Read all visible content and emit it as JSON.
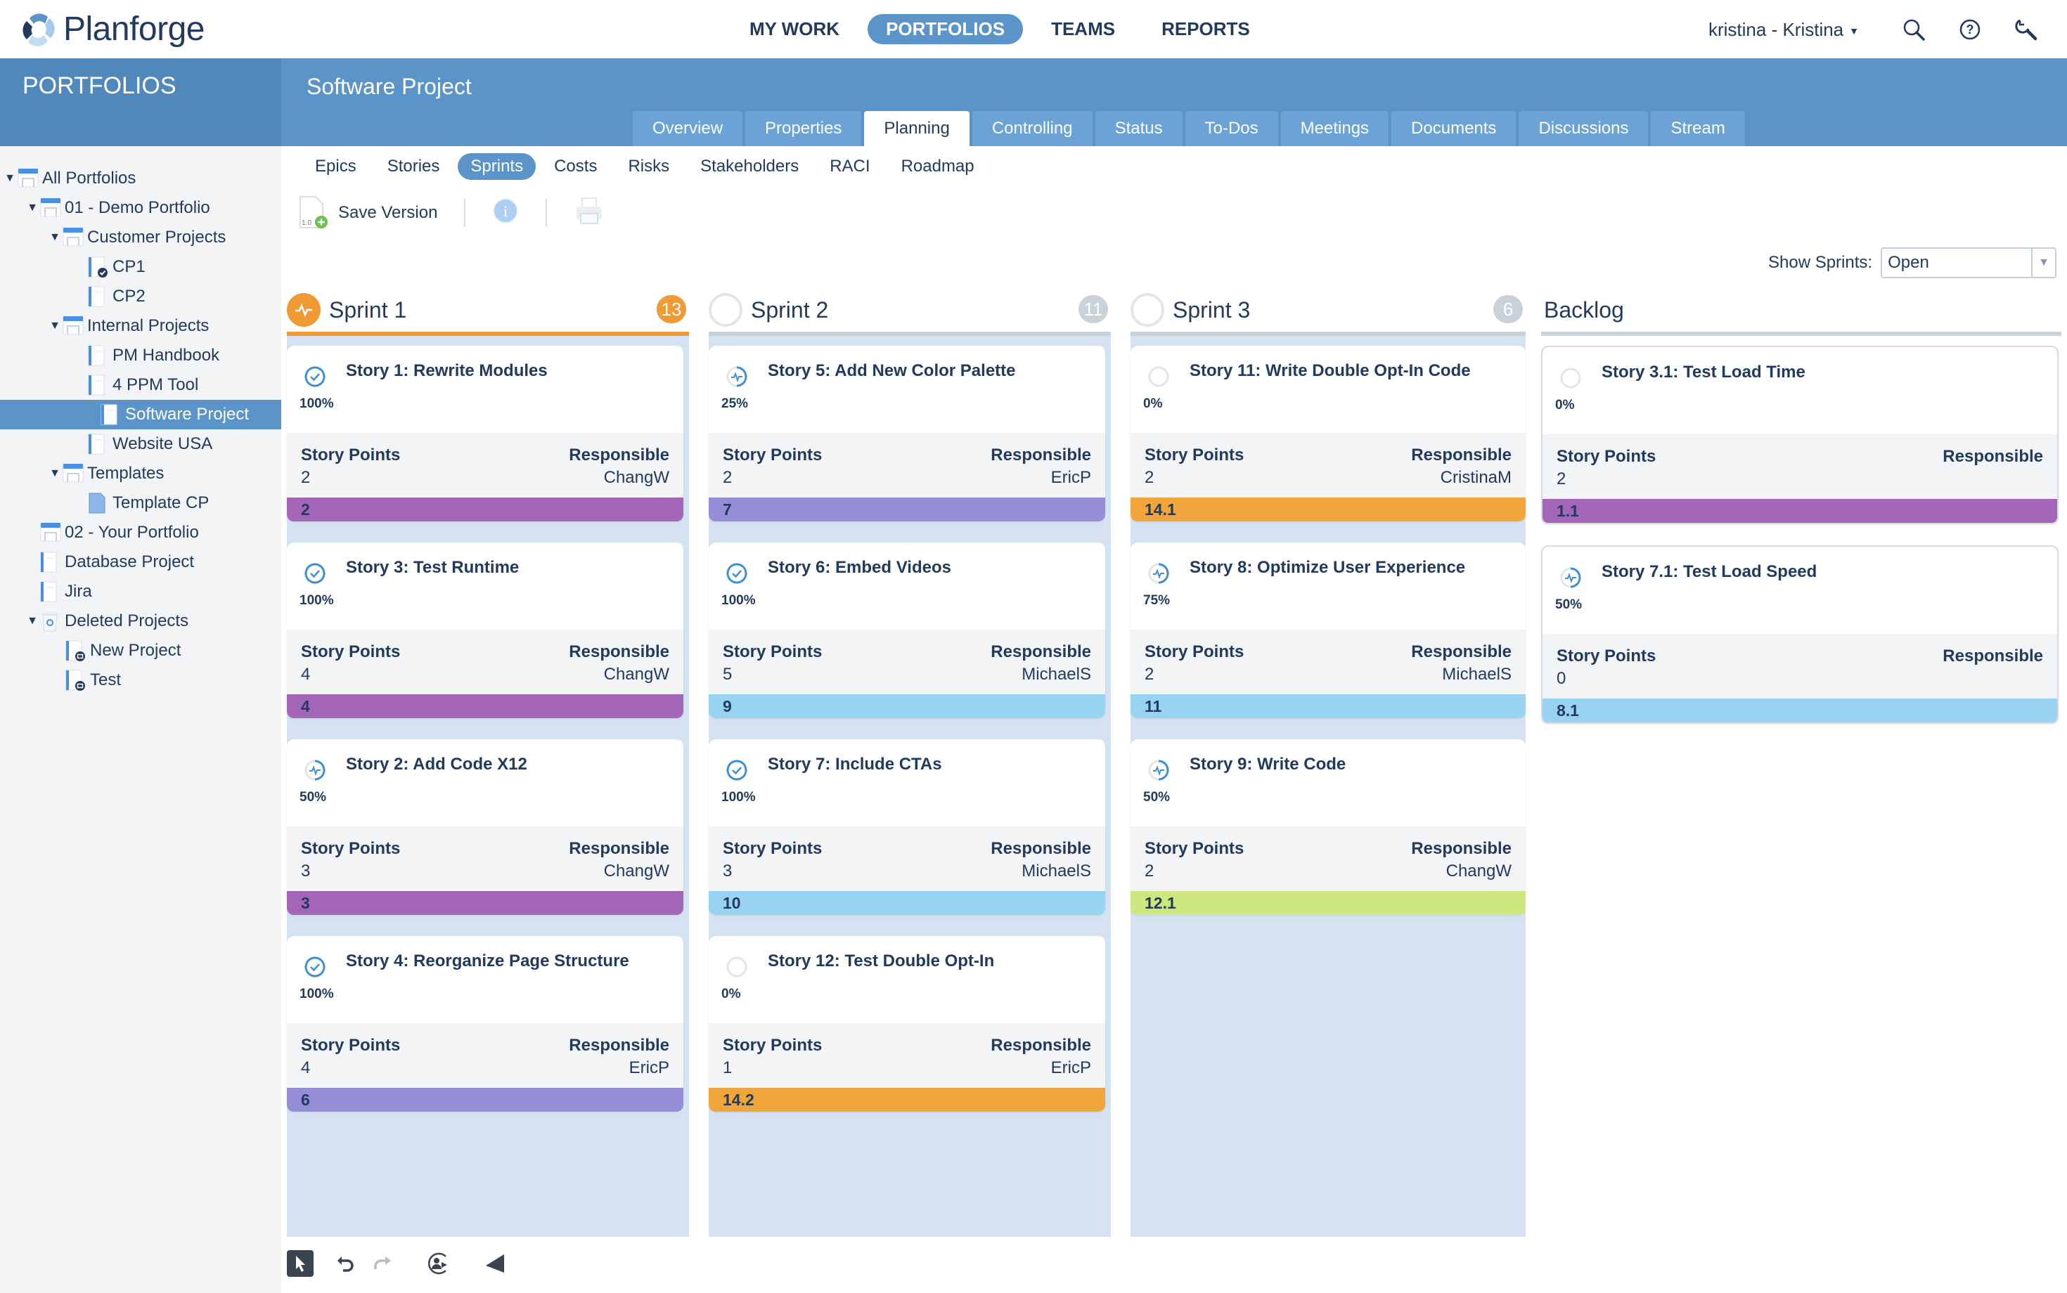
{
  "app": {
    "name": "Planforge"
  },
  "topnav": {
    "items": [
      {
        "label": "MY WORK",
        "active": false
      },
      {
        "label": "PORTFOLIOS",
        "active": true
      },
      {
        "label": "TEAMS",
        "active": false
      },
      {
        "label": "REPORTS",
        "active": false
      }
    ],
    "user": "kristina - Kristina",
    "icons": [
      "search-icon",
      "help-icon",
      "admin-wrench-icon"
    ]
  },
  "sidebar": {
    "title": "PORTFOLIOS",
    "tree": [
      {
        "label": "All Portfolios",
        "level": 0,
        "icon": "portfolio-icon",
        "expanded": true
      },
      {
        "label": "01 - Demo Portfolio",
        "level": 1,
        "icon": "portfolio-icon",
        "expanded": true
      },
      {
        "label": "Customer Projects",
        "level": 2,
        "icon": "portfolio-icon",
        "expanded": true
      },
      {
        "label": "CP1",
        "level": 3,
        "icon": "project-completed-icon"
      },
      {
        "label": "CP2",
        "level": 3,
        "icon": "project-icon"
      },
      {
        "label": "Internal Projects",
        "level": 2,
        "icon": "portfolio-icon",
        "expanded": true
      },
      {
        "label": "PM Handbook",
        "level": 3,
        "icon": "project-icon"
      },
      {
        "label": "4 PPM Tool",
        "level": 3,
        "icon": "project-icon"
      },
      {
        "label": "Software Project",
        "level": 3,
        "icon": "project-icon",
        "selected": true
      },
      {
        "label": "Website USA",
        "level": 3,
        "icon": "project-icon"
      },
      {
        "label": "Templates",
        "level": 2,
        "icon": "portfolio-icon",
        "expanded": true
      },
      {
        "label": "Template CP",
        "level": 3,
        "icon": "template-icon"
      },
      {
        "label": "02 - Your Portfolio",
        "level": 1,
        "icon": "portfolio-icon"
      },
      {
        "label": "Database Project",
        "level": 1,
        "icon": "project-icon"
      },
      {
        "label": "Jira",
        "level": 1,
        "icon": "project-icon"
      },
      {
        "label": "Deleted Projects",
        "level": 1,
        "icon": "trash-icon",
        "expanded": true
      },
      {
        "label": "New Project",
        "level": 2,
        "icon": "project-archived-icon"
      },
      {
        "label": "Test",
        "level": 2,
        "icon": "project-archived-icon"
      }
    ]
  },
  "project": {
    "title": "Software Project",
    "tabs": [
      {
        "label": "Overview"
      },
      {
        "label": "Properties"
      },
      {
        "label": "Planning",
        "active": true
      },
      {
        "label": "Controlling"
      },
      {
        "label": "Status"
      },
      {
        "label": "To-Dos"
      },
      {
        "label": "Meetings"
      },
      {
        "label": "Documents"
      },
      {
        "label": "Discussions"
      },
      {
        "label": "Stream"
      }
    ],
    "subtabs": [
      {
        "label": "Epics"
      },
      {
        "label": "Stories"
      },
      {
        "label": "Sprints",
        "active": true
      },
      {
        "label": "Costs"
      },
      {
        "label": "Risks"
      },
      {
        "label": "Stakeholders"
      },
      {
        "label": "RACI"
      },
      {
        "label": "Roadmap"
      }
    ]
  },
  "toolbar": {
    "save_version": "Save Version",
    "version_badge": "1.0"
  },
  "filter": {
    "label": "Show Sprints:",
    "value": "Open"
  },
  "labels": {
    "story_points": "Story Points",
    "responsible": "Responsible"
  },
  "colors": {
    "accent": "#5b94c8",
    "sprint_active": "#ef9a33",
    "epic_purple": "#a366b9",
    "epic_lavender": "#958dd5",
    "epic_lightblue": "#98d4f2",
    "epic_orange": "#f0a63a",
    "epic_lime": "#cfe77f"
  },
  "board": {
    "columns": [
      {
        "name": "Sprint 1",
        "count": "13",
        "active": true,
        "cards": [
          {
            "title": "Story 1: Rewrite Modules",
            "pct": "100%",
            "status": "done",
            "points": "2",
            "responsible": "ChangW",
            "epic": "2",
            "color": "#a366b9"
          },
          {
            "title": "Story 3: Test Runtime",
            "pct": "100%",
            "status": "done",
            "points": "4",
            "responsible": "ChangW",
            "epic": "4",
            "color": "#a366b9"
          },
          {
            "title": "Story 2: Add Code X12",
            "pct": "50%",
            "status": "progress",
            "points": "3",
            "responsible": "ChangW",
            "epic": "3",
            "color": "#a366b9"
          },
          {
            "title": "Story 4: Reorganize Page Structure",
            "pct": "100%",
            "status": "done",
            "points": "4",
            "responsible": "EricP",
            "epic": "6",
            "color": "#958dd5"
          }
        ]
      },
      {
        "name": "Sprint 2",
        "count": "11",
        "active": false,
        "cards": [
          {
            "title": "Story 5: Add New Color Palette",
            "pct": "25%",
            "status": "progress",
            "points": "2",
            "responsible": "EricP",
            "epic": "7",
            "color": "#958dd5"
          },
          {
            "title": "Story 6: Embed Videos",
            "pct": "100%",
            "status": "done",
            "points": "5",
            "responsible": "MichaelS",
            "epic": "9",
            "color": "#98d4f2"
          },
          {
            "title": "Story 7: Include CTAs",
            "pct": "100%",
            "status": "done",
            "points": "3",
            "responsible": "MichaelS",
            "epic": "10",
            "color": "#98d4f2"
          },
          {
            "title": "Story 12: Test Double Opt-In",
            "pct": "0%",
            "status": "open",
            "points": "1",
            "responsible": "EricP",
            "epic": "14.2",
            "color": "#f0a63a"
          }
        ]
      },
      {
        "name": "Sprint 3",
        "count": "6",
        "active": false,
        "cards": [
          {
            "title": "Story 11: Write Double Opt-In Code",
            "pct": "0%",
            "status": "open",
            "points": "2",
            "responsible": "CristinaM",
            "epic": "14.1",
            "color": "#f0a63a"
          },
          {
            "title": "Story 8: Optimize User Experience",
            "pct": "75%",
            "status": "progress",
            "points": "2",
            "responsible": "MichaelS",
            "epic": "11",
            "color": "#98d4f2"
          },
          {
            "title": "Story 9: Write Code",
            "pct": "50%",
            "status": "progress",
            "points": "2",
            "responsible": "ChangW",
            "epic": "12.1",
            "color": "#cfe77f"
          }
        ]
      },
      {
        "name": "Backlog",
        "count": "",
        "active": false,
        "backlog": true,
        "cards": [
          {
            "title": "Story 3.1: Test Load Time",
            "pct": "0%",
            "status": "open",
            "points": "2",
            "responsible": "",
            "epic": "1.1",
            "color": "#a366b9"
          },
          {
            "title": "Story 7.1: Test Load Speed",
            "pct": "50%",
            "status": "progress",
            "points": "0",
            "responsible": "",
            "epic": "8.1",
            "color": "#98d4f2"
          }
        ]
      }
    ]
  },
  "bottombar": {
    "icons": [
      "select-pointer-icon",
      "undo-icon",
      "redo-icon",
      "assign-user-icon",
      "send-icon"
    ]
  }
}
